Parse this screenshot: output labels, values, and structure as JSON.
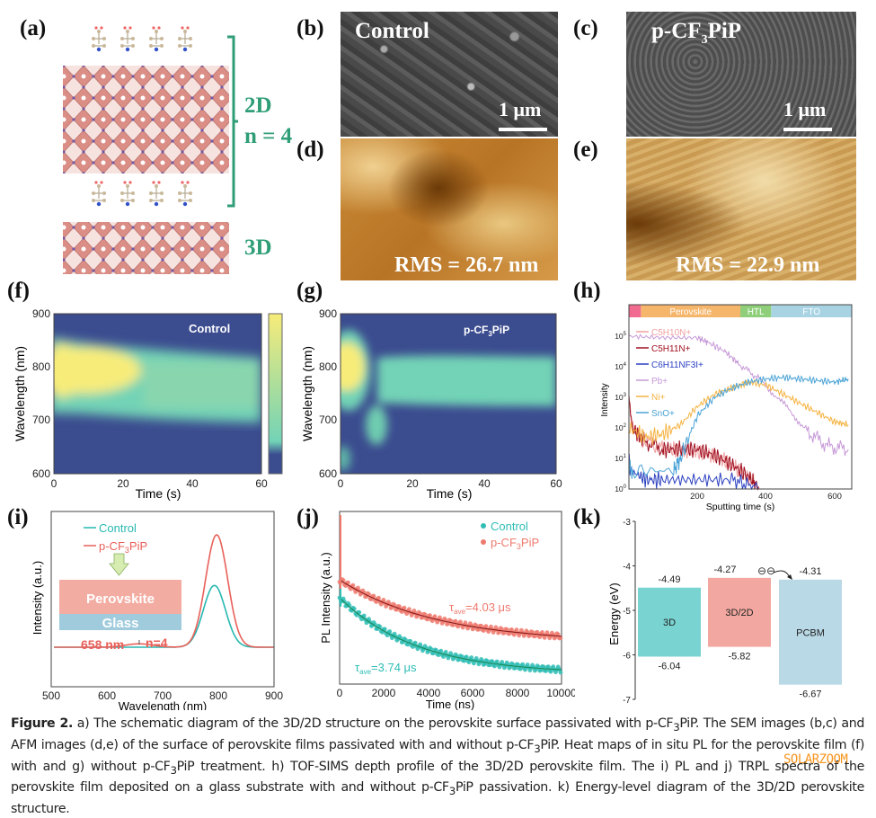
{
  "panel_labels": [
    "(a)",
    "(b)",
    "(c)",
    "(d)",
    "(e)",
    "(f)",
    "(g)",
    "(h)",
    "(i)",
    "(j)",
    "(k)"
  ],
  "panel_a": {
    "label_2d": "2D",
    "label_n": "n = 4",
    "label_3d": "3D",
    "accent_color": "#2f9e77",
    "octahedra_color": "#d98880"
  },
  "panel_b": {
    "title": "Control",
    "scale_bar": "1 μm"
  },
  "panel_c": {
    "title_prefix": "p-CF",
    "title_sub": "3",
    "title_suffix": "PiP",
    "scale_bar": "1 μm"
  },
  "panel_d": {
    "rms": "RMS = 26.7 nm"
  },
  "panel_e": {
    "rms": "RMS = 22.9 nm"
  },
  "chart_data": [
    {
      "id": "f",
      "type": "heatmap",
      "title": "Control",
      "xlabel": "Time (s)",
      "ylabel": "Wavelength (nm)",
      "xlim": [
        0,
        60
      ],
      "ylim": [
        600,
        900
      ],
      "xticks": [
        "0",
        "20",
        "40",
        "60"
      ],
      "yticks": [
        "600",
        "700",
        "800",
        "900"
      ],
      "description": "PL band centered ~785 nm, strong (yellow) from 0–25 s, broad 720–850 nm, fading to teal after 30 s",
      "colormap": [
        "#3b4c8f",
        "#72d3b6",
        "#f7ec7a"
      ]
    },
    {
      "id": "g",
      "type": "heatmap",
      "title": "p-CF3PiP",
      "xlabel": "Time (s)",
      "ylabel": "Wavelength (nm)",
      "xlim": [
        0,
        60
      ],
      "ylim": [
        600,
        900
      ],
      "xticks": [
        "0",
        "20",
        "40",
        "60"
      ],
      "yticks": [
        "600",
        "700",
        "800",
        "900"
      ],
      "description": "Intense peak ~790 nm for 0–6 s, transient ~670 nm feature 5–15 s, steady 730–820 nm band after 10 s"
    },
    {
      "id": "h",
      "type": "line",
      "xlabel": "Sputting time (s)",
      "ylabel": "Intensity",
      "xlim": [
        0,
        650
      ],
      "ylim_log10": [
        0,
        5.5
      ],
      "xticks": [
        "200",
        "400",
        "600"
      ],
      "yticks": [
        "10^0",
        "10^1",
        "10^2",
        "10^3",
        "10^4",
        "10^5"
      ],
      "regions": [
        {
          "name": "",
          "from": 0,
          "to": 35,
          "color": "#f06b8f"
        },
        {
          "name": "Perovskite",
          "from": 35,
          "to": 325,
          "color": "#f5b56a"
        },
        {
          "name": "HTL",
          "from": 325,
          "to": 415,
          "color": "#8fcf7a"
        },
        {
          "name": "FTO",
          "from": 415,
          "to": 650,
          "color": "#a8d3e3"
        }
      ],
      "series": [
        {
          "name": "C5H10N+",
          "color": "#f0a0a0",
          "x": [
            0,
            10,
            40,
            100,
            150,
            200,
            250,
            300,
            350,
            380
          ],
          "log10y": [
            3,
            2,
            1.6,
            1.3,
            1.3,
            1.2,
            1.1,
            0.8,
            0.4,
            0
          ]
        },
        {
          "name": "C5H11N+",
          "color": "#a01020",
          "x": [
            0,
            10,
            40,
            100,
            150,
            200,
            250,
            300,
            350,
            380
          ],
          "log10y": [
            3,
            2,
            1.6,
            1.3,
            1.3,
            1.3,
            1.1,
            0.8,
            0.4,
            0
          ]
        },
        {
          "name": "C6H11NF3I+",
          "color": "#2a3fc0",
          "x": [
            0,
            5,
            50,
            100,
            200,
            300,
            380
          ],
          "log10y": [
            1.0,
            0.6,
            0.3,
            0.3,
            0.3,
            0.3,
            0
          ]
        },
        {
          "name": "Pb+",
          "color": "#c79ad8",
          "x": [
            0,
            100,
            200,
            230,
            280,
            320,
            380,
            450,
            520,
            580,
            640
          ],
          "log10y": [
            5.0,
            4.95,
            4.95,
            4.8,
            4.5,
            4.1,
            3.6,
            2.8,
            1.9,
            1.4,
            1.3
          ]
        },
        {
          "name": "Ni+",
          "color": "#f5b342",
          "x": [
            0,
            50,
            100,
            150,
            200,
            250,
            300,
            350,
            400,
            450,
            500,
            550,
            600,
            640
          ],
          "log10y": [
            2.0,
            1.7,
            1.8,
            2.1,
            2.7,
            3.1,
            3.3,
            3.5,
            3.4,
            3.1,
            2.8,
            2.5,
            2.2,
            2.1
          ]
        },
        {
          "name": "SnO+",
          "color": "#4aa3d6",
          "x": [
            0,
            10,
            130,
            150,
            200,
            250,
            300,
            350,
            400,
            450,
            500,
            550,
            600,
            640
          ],
          "log10y": [
            0.7,
            0.6,
            0.6,
            1.0,
            2.4,
            3.0,
            3.3,
            3.5,
            3.6,
            3.65,
            3.6,
            3.55,
            3.5,
            3.6
          ]
        }
      ]
    },
    {
      "id": "i",
      "type": "line",
      "xlabel": "Wavelength (nm)",
      "ylabel": "Intensity (a.u.)",
      "xlim": [
        500,
        900
      ],
      "xticks": [
        "500",
        "600",
        "700",
        "800",
        "900"
      ],
      "series": [
        {
          "name": "Control",
          "color": "#27b8b0",
          "peak_nm": 793,
          "peak_rel": 0.55,
          "shoulder_rel": 0.0
        },
        {
          "name": "p-CF3PiP",
          "color": "#e8605a",
          "peak_nm": 797,
          "peak_rel": 1.0,
          "shoulder_rel": 0.03
        }
      ],
      "annotations": {
        "peak_label": "658 nm",
        "phase_label": "n=4"
      },
      "inset": {
        "top_layer": "Perovskite",
        "bottom_layer": "Glass",
        "top_color": "#f3aca2",
        "bottom_color": "#9fcbdc"
      }
    },
    {
      "id": "j",
      "type": "scatter",
      "xlabel": "Time (ns)",
      "ylabel": "PL Intensity (a.u.)",
      "xlim": [
        0,
        10000
      ],
      "xticks": [
        "0",
        "2000",
        "4000",
        "6000",
        "8000",
        "10000"
      ],
      "series": [
        {
          "name": "Control",
          "color": "#2fbdb5",
          "fit_color": "#1a8a5a",
          "tau": "τave=3.74 μs"
        },
        {
          "name": "p-CF3PiP",
          "color": "#ee7a6e",
          "fit_color": "#8a1a1a",
          "tau": "τave=4.03 μs"
        }
      ]
    },
    {
      "id": "k",
      "type": "bar",
      "ylabel": "Energy (eV)",
      "ylim": [
        -7,
        -3
      ],
      "yticks": [
        "-3",
        "-4",
        "-5",
        "-6",
        "-7"
      ],
      "bars": [
        {
          "name": "3D",
          "top": -4.49,
          "bottom": -6.04,
          "top_label": "-4.49",
          "bottom_label": "-6.04",
          "color": "#79d3d1"
        },
        {
          "name": "3D/2D",
          "top": -4.27,
          "bottom": -5.82,
          "top_label": "-4.27",
          "bottom_label": "-5.82",
          "color": "#f2a8a0"
        },
        {
          "name": "PCBM",
          "top": -4.31,
          "bottom": -6.67,
          "top_label": "-4.31",
          "bottom_label": "-6.67",
          "color": "#b9d9e6"
        }
      ],
      "electron_symbol": "⊖⊖"
    }
  ],
  "legend_h": [
    "C5H10N+",
    "C5H11N+",
    "C6H11NF3I+",
    "Pb+",
    "Ni+",
    "SnO+"
  ],
  "caption": {
    "figure_label": "Figure 2.",
    "text_1": " a) The schematic diagram of the 3D/2D structure on the perovskite surface passivated with p-CF",
    "text_2": "PiP. The SEM images (b,c) and AFM images (d,e) of the surface of perovskite films passivated with and without p-CF",
    "text_3": "PiP. Heat maps of in situ PL for the perovskite film (f) with and g) without p-CF",
    "text_4": "PiP treatment. h) TOF-SIMS depth profile of the 3D/2D perovskite film. The i) PL and j) TRPL spectra of the perovskite film deposited on a glass substrate with and without p-CF",
    "text_5": "PiP passivation. k) Energy-level diagram of the 3D/2D perovskite structure.",
    "sub": "3"
  },
  "watermark": "SOLARZOOM"
}
